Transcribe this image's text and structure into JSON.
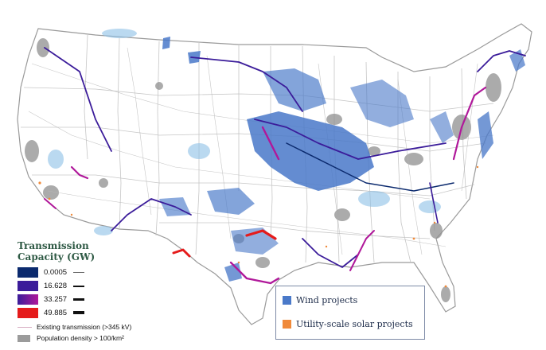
{
  "legend": {
    "title_line1": "Transmission",
    "title_line2": "Capacity (GW)",
    "capacity": [
      {
        "value": "0.0005",
        "color": "#0b2a6e"
      },
      {
        "value": "16.628",
        "color": "#3b1c9a"
      },
      {
        "value": "33.257",
        "color": "#b0189a"
      },
      {
        "value": "49.885",
        "color": "#e51b1b"
      }
    ],
    "existing_transmission": "Existing transmission (>345 kV)",
    "population_density": "Population density > 100/km²"
  },
  "projects_legend": {
    "wind_label": "Wind projects",
    "solar_label": "Utility-scale solar projects",
    "wind_color": "#4a79c9",
    "solar_color": "#f08a3a"
  },
  "colors": {
    "state_border": "#bdbdbd",
    "land": "#ffffff",
    "population": "#8f8f8f",
    "line_low": "#0b2a6e",
    "line_mid": "#4a22a8",
    "line_high": "#c0189e",
    "line_peak": "#e51b1b"
  }
}
